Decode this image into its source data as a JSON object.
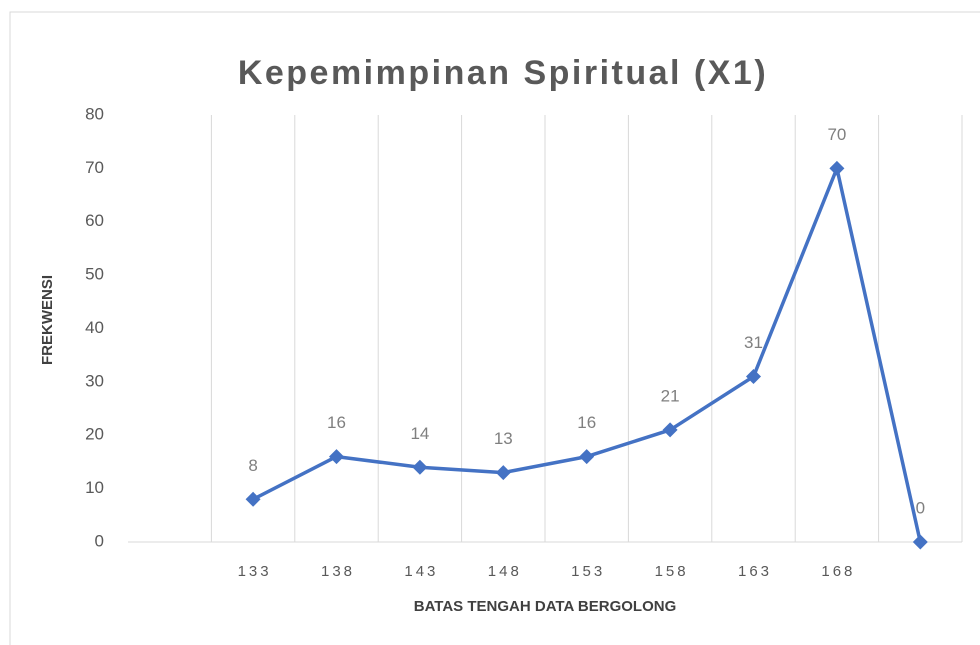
{
  "chart_data": {
    "type": "line",
    "title": "Kepemimpinan Spiritual (X1)",
    "x_label": "BATAS TENGAH DATA BERGOLONG",
    "y_label": "FREKWENSI",
    "categories": [
      null,
      "133",
      "138",
      "143",
      "148",
      "153",
      "158",
      "163",
      "168",
      null
    ],
    "series": [
      {
        "name": "Frekwensi",
        "color": "#4472c4",
        "values": [
          null,
          8,
          16,
          14,
          13,
          16,
          21,
          31,
          70,
          0
        ]
      }
    ],
    "ylim": [
      0,
      80
    ],
    "yticks": [
      0,
      10,
      20,
      30,
      40,
      50,
      60,
      70,
      80
    ],
    "grid": true
  }
}
